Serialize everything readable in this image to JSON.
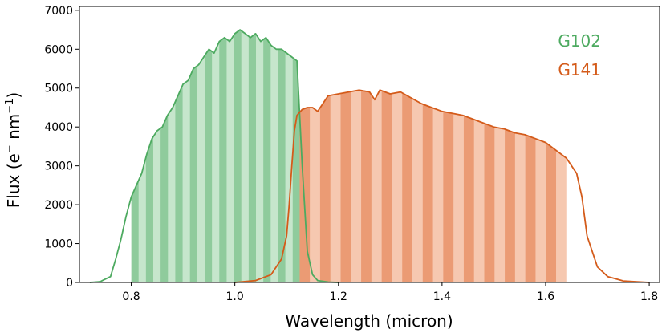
{
  "chart_data": {
    "type": "area",
    "xlabel": "Wavelength (micron)",
    "ylabel_parts": {
      "base": "Flux (e",
      "sup1": "−",
      "mid": " nm",
      "sup2": "−1",
      "end": ")"
    },
    "xlim": [
      0.7,
      1.82
    ],
    "ylim": [
      0,
      7100
    ],
    "xticks": [
      0.8,
      1.0,
      1.2,
      1.4,
      1.6,
      1.8
    ],
    "xtick_labels": [
      "0.8",
      "1.0",
      "1.2",
      "1.4",
      "1.6",
      "1.8"
    ],
    "yticks": [
      0,
      1000,
      2000,
      3000,
      4000,
      5000,
      6000,
      7000
    ],
    "ytick_labels": [
      "0",
      "1000",
      "2000",
      "3000",
      "4000",
      "5000",
      "6000",
      "7000"
    ],
    "legend_placement": "top-right",
    "series": [
      {
        "name": "G102",
        "color": "#4daa60",
        "fill_dark": "#8fcb9c",
        "fill_light": "#c6e6cc",
        "band_range": [
          0.8,
          1.14
        ],
        "band_count": 24,
        "x": [
          0.72,
          0.74,
          0.76,
          0.77,
          0.78,
          0.79,
          0.8,
          0.81,
          0.82,
          0.83,
          0.84,
          0.85,
          0.86,
          0.87,
          0.88,
          0.89,
          0.9,
          0.91,
          0.92,
          0.93,
          0.94,
          0.95,
          0.96,
          0.97,
          0.98,
          0.99,
          1.0,
          1.01,
          1.02,
          1.03,
          1.04,
          1.05,
          1.06,
          1.07,
          1.08,
          1.09,
          1.1,
          1.11,
          1.12,
          1.13,
          1.14,
          1.15,
          1.16,
          1.18,
          1.2
        ],
        "y": [
          0,
          20,
          150,
          600,
          1100,
          1700,
          2200,
          2500,
          2800,
          3300,
          3700,
          3900,
          4000,
          4300,
          4500,
          4800,
          5100,
          5200,
          5500,
          5600,
          5800,
          6000,
          5900,
          6200,
          6300,
          6200,
          6400,
          6500,
          6400,
          6300,
          6400,
          6200,
          6300,
          6100,
          6000,
          6000,
          5900,
          5800,
          5700,
          3000,
          800,
          200,
          50,
          10,
          0
        ]
      },
      {
        "name": "G141",
        "color": "#d45b1a",
        "fill_dark": "#eb9b74",
        "fill_light": "#f6c8b0",
        "band_range": [
          1.125,
          1.64
        ],
        "band_count": 26,
        "x": [
          1.0,
          1.04,
          1.07,
          1.09,
          1.1,
          1.105,
          1.11,
          1.115,
          1.12,
          1.13,
          1.14,
          1.15,
          1.16,
          1.17,
          1.18,
          1.2,
          1.22,
          1.24,
          1.26,
          1.27,
          1.28,
          1.29,
          1.3,
          1.32,
          1.34,
          1.36,
          1.38,
          1.4,
          1.42,
          1.44,
          1.46,
          1.48,
          1.5,
          1.52,
          1.54,
          1.56,
          1.58,
          1.6,
          1.62,
          1.64,
          1.65,
          1.66,
          1.67,
          1.68,
          1.7,
          1.72,
          1.75,
          1.8
        ],
        "y": [
          0,
          50,
          200,
          600,
          1200,
          2000,
          3000,
          3900,
          4300,
          4450,
          4500,
          4500,
          4400,
          4600,
          4800,
          4850,
          4900,
          4950,
          4900,
          4700,
          4950,
          4900,
          4850,
          4900,
          4750,
          4600,
          4500,
          4400,
          4350,
          4300,
          4200,
          4100,
          4000,
          3950,
          3850,
          3800,
          3700,
          3600,
          3400,
          3200,
          3000,
          2800,
          2200,
          1200,
          400,
          150,
          40,
          0
        ]
      }
    ]
  }
}
